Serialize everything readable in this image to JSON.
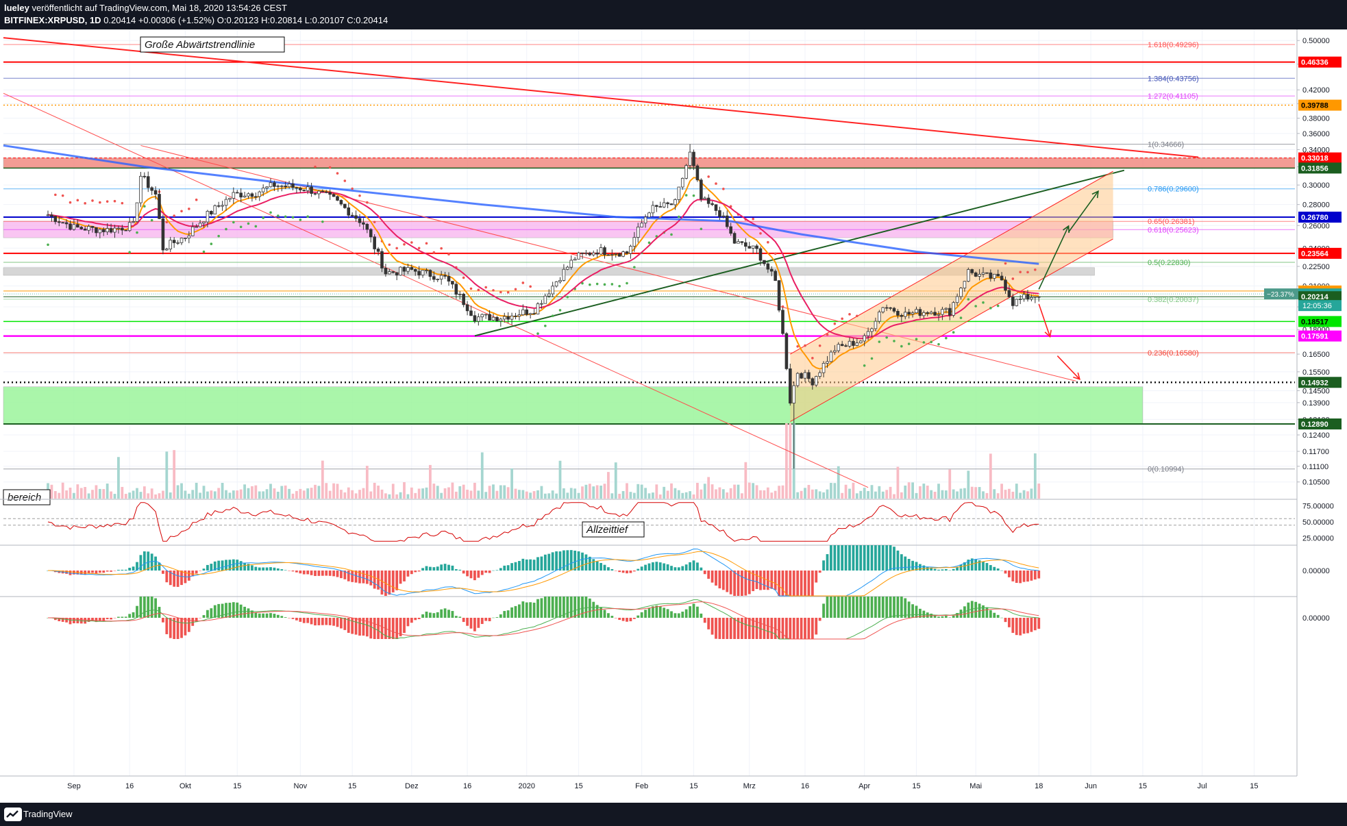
{
  "header": {
    "author": "lueley",
    "published": "veröffentlicht auf TradingView.com, Mai 18, 2020 13:54:26 CEST",
    "symbol": "BITFINEX:XRPUSD, 1D",
    "last": "0.20414",
    "change": "+0.00306 (+1.52%)",
    "open_label": "O:",
    "open": "0.20123",
    "high_label": "H:",
    "high": "0.20814",
    "low_label": "L:",
    "low": "0.20107",
    "close_label": "C:",
    "close": "0.20414"
  },
  "footer": {
    "brand": "TradingView"
  },
  "chart_data": {
    "type": "candlestick",
    "symbol": "BITFINEX:XRPUSD",
    "timeframe": "1D",
    "price_axis": {
      "scale": "log",
      "range": [
        0.099,
        0.52
      ],
      "ticks": [
        0.5,
        0.46,
        0.42,
        0.4,
        0.38,
        0.36,
        0.34,
        0.32,
        0.3,
        0.28,
        0.26,
        0.24,
        0.225,
        0.21,
        0.195,
        0.18,
        0.165,
        0.155,
        0.145,
        0.139,
        0.131,
        0.124,
        0.117,
        0.111,
        0.105
      ],
      "tick_labels": [
        "0.50000",
        "0.46000",
        "0.42000",
        "0.40000",
        "0.38000",
        "0.36000",
        "0.34000",
        "0.32000",
        "0.30000",
        "0.28000",
        "0.26000",
        "0.24000",
        "0.22500",
        "0.21000",
        "0.19500",
        "0.18000",
        "0.16500",
        "0.15500",
        "0.14500",
        "0.13900",
        "0.13100",
        "0.12400",
        "0.11700",
        "0.11100",
        "0.10500"
      ]
    },
    "time_axis": {
      "ticks": [
        "Sep",
        "16",
        "Okt",
        "15",
        "Nov",
        "15",
        "Dez",
        "16",
        "2020",
        "15",
        "Feb",
        "15",
        "Mrz",
        "16",
        "Apr",
        "15",
        "Mai",
        "18",
        "Jun",
        "15",
        "Jul",
        "15"
      ],
      "tick_dates": [
        "2019-09-01",
        "2019-09-16",
        "2019-10-01",
        "2019-10-15",
        "2019-11-01",
        "2019-11-15",
        "2019-12-01",
        "2019-12-16",
        "2020-01-01",
        "2020-01-15",
        "2020-02-01",
        "2020-02-15",
        "2020-03-01",
        "2020-03-16",
        "2020-04-01",
        "2020-04-15",
        "2020-05-01",
        "2020-05-18",
        "2020-06-01",
        "2020-06-15",
        "2020-07-01",
        "2020-07-15"
      ]
    },
    "price_path": [
      [
        "2019-08-25",
        0.27
      ],
      [
        "2019-09-01",
        0.258
      ],
      [
        "2019-09-10",
        0.256
      ],
      [
        "2019-09-17",
        0.26
      ],
      [
        "2019-09-19",
        0.31
      ],
      [
        "2019-09-23",
        0.29
      ],
      [
        "2019-09-25",
        0.24
      ],
      [
        "2019-10-01",
        0.25
      ],
      [
        "2019-10-07",
        0.27
      ],
      [
        "2019-10-14",
        0.29
      ],
      [
        "2019-10-20",
        0.292
      ],
      [
        "2019-10-25",
        0.3
      ],
      [
        "2019-11-03",
        0.296
      ],
      [
        "2019-11-10",
        0.285
      ],
      [
        "2019-11-18",
        0.262
      ],
      [
        "2019-11-24",
        0.22
      ],
      [
        "2019-12-01",
        0.222
      ],
      [
        "2019-12-10",
        0.216
      ],
      [
        "2019-12-18",
        0.188
      ],
      [
        "2019-12-25",
        0.188
      ],
      [
        "2020-01-03",
        0.193
      ],
      [
        "2020-01-08",
        0.21
      ],
      [
        "2020-01-14",
        0.232
      ],
      [
        "2020-01-20",
        0.238
      ],
      [
        "2020-01-28",
        0.236
      ],
      [
        "2020-02-03",
        0.275
      ],
      [
        "2020-02-10",
        0.281
      ],
      [
        "2020-02-14",
        0.335
      ],
      [
        "2020-02-17",
        0.285
      ],
      [
        "2020-02-22",
        0.272
      ],
      [
        "2020-02-26",
        0.245
      ],
      [
        "2020-03-03",
        0.238
      ],
      [
        "2020-03-08",
        0.213
      ],
      [
        "2020-03-12",
        0.14
      ],
      [
        "2020-03-14",
        0.155
      ],
      [
        "2020-03-18",
        0.15
      ],
      [
        "2020-03-24",
        0.168
      ],
      [
        "2020-04-01",
        0.174
      ],
      [
        "2020-04-06",
        0.196
      ],
      [
        "2020-04-12",
        0.19
      ],
      [
        "2020-04-18",
        0.192
      ],
      [
        "2020-04-24",
        0.192
      ],
      [
        "2020-04-29",
        0.221
      ],
      [
        "2020-05-02",
        0.218
      ],
      [
        "2020-05-08",
        0.215
      ],
      [
        "2020-05-11",
        0.198
      ],
      [
        "2020-05-14",
        0.201
      ],
      [
        "2020-05-18",
        0.204
      ]
    ],
    "price_labels": [
      {
        "value": 0.46336,
        "text": "0.46336",
        "color": "#ff0000"
      },
      {
        "value": 0.39788,
        "text": "0.39788",
        "color": "#ff9800"
      },
      {
        "value": 0.33018,
        "text": "0.33018",
        "color": "#ff0000"
      },
      {
        "value": 0.31856,
        "text": "0.31856",
        "color": "#1b5e20"
      },
      {
        "value": 0.2678,
        "text": "0.26780",
        "color": "#0000cc"
      },
      {
        "value": 0.23564,
        "text": "0.23564",
        "color": "#ff0000"
      },
      {
        "value": 0.20627,
        "text": "0.20627",
        "color": "#ff9800"
      },
      {
        "value": 0.20414,
        "text": "0.20414",
        "color": "#26a69a"
      },
      {
        "value": 0.20214,
        "text": "0.20214",
        "color": "#1b5e20"
      },
      {
        "value": 0.18517,
        "text": "0.18517",
        "color": "#00e600"
      },
      {
        "value": 0.17591,
        "text": "0.17591",
        "color": "#ff00ff"
      },
      {
        "value": 0.14932,
        "text": "0.14932",
        "color": "#1b5e20"
      },
      {
        "value": 0.1289,
        "text": "0.12890",
        "color": "#1b5e20"
      }
    ],
    "price_countdown": "12:05:36",
    "percent_change_label": "−23.37%",
    "fibonacci": [
      {
        "level": "1.618",
        "value": 0.49296,
        "text": "1.618(0.49296)",
        "color": "#ff5252"
      },
      {
        "level": "1.384",
        "value": 0.43756,
        "text": "1.384(0.43756)",
        "color": "#3f51b5"
      },
      {
        "level": "1.272",
        "value": 0.41105,
        "text": "1.272(0.41105)",
        "color": "#e040fb"
      },
      {
        "level": "1",
        "value": 0.34666,
        "text": "1(0.34666)",
        "color": "#787b86"
      },
      {
        "level": "0.786",
        "value": 0.296,
        "text": "0.786(0.29600)",
        "color": "#2196f3"
      },
      {
        "level": "0.65",
        "value": 0.26381,
        "text": "0.65(0.26381)",
        "color": "#ff5252"
      },
      {
        "level": "0.618",
        "value": 0.25623,
        "text": "0.618(0.25623)",
        "color": "#e040fb"
      },
      {
        "level": "0.5",
        "value": 0.2283,
        "text": "0.5(0.22830)",
        "color": "#4caf50"
      },
      {
        "level": "0.382",
        "value": 0.20037,
        "text": "0.382(0.20037)",
        "color": "#81c784"
      },
      {
        "level": "0.236",
        "value": 0.1658,
        "text": "0.236(0.16580)",
        "color": "#f44336"
      },
      {
        "level": "0",
        "value": 0.10994,
        "text": "0(0.10994)",
        "color": "#787b86"
      }
    ],
    "zones": [
      {
        "name": "resistance-zone-red",
        "from": 0.31856,
        "to": 0.33018,
        "color": "#f28b82"
      },
      {
        "name": "resistance-zone-pink",
        "from": 0.249,
        "to": 0.264,
        "color": "#f8bbf0"
      },
      {
        "name": "resistance-zone-grey",
        "from": 0.218,
        "to": 0.224,
        "color": "#d0d0d0"
      },
      {
        "name": "support-zone-green",
        "from": 0.1289,
        "to": 0.147,
        "color": "#9cf59c"
      }
    ],
    "annotations": [
      {
        "text": "Große Abwärtstrendlinie"
      },
      {
        "text": "bereich"
      },
      {
        "text": "Allzeittief"
      }
    ],
    "sub_panes": [
      {
        "name": "RSI",
        "ticks": [
          75.0,
          50.0,
          25.0
        ],
        "tick_labels": [
          "75.00000",
          "50.00000",
          "25.00000"
        ]
      },
      {
        "name": "MACD",
        "ticks": [
          0.0
        ],
        "tick_labels": [
          "0.00000"
        ]
      },
      {
        "name": "Oscillator",
        "ticks": [
          0.0
        ],
        "tick_labels": [
          "0.00000"
        ]
      }
    ],
    "colors": {
      "up": "#26a69a",
      "down": "#ef5350",
      "ema_fast": "#ff9800",
      "ema_mid": "#e91e63",
      "ma_slow": "#2962ff"
    }
  }
}
